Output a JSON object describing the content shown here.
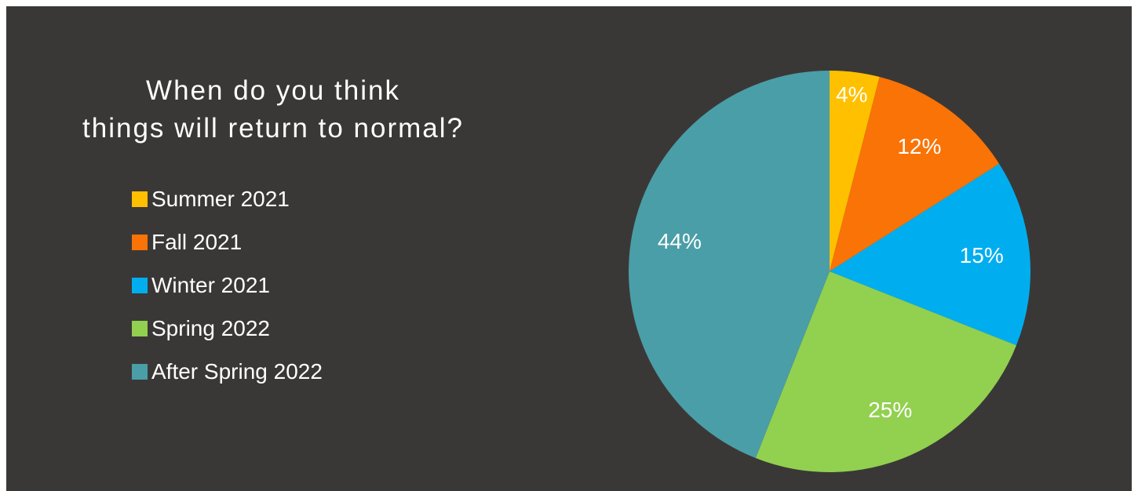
{
  "chart_data": {
    "type": "pie",
    "title_lines": [
      "When do you think",
      "things will return to normal?"
    ],
    "categories": [
      "Summer 2021",
      "Fall 2021",
      "Winter 2021",
      "Spring 2022",
      "After Spring 2022"
    ],
    "values": [
      4,
      12,
      15,
      25,
      44
    ],
    "labels": [
      "4%",
      "12%",
      "15%",
      "25%",
      "44%"
    ],
    "colors": [
      "#FFC000",
      "#F97306",
      "#00AEEF",
      "#92D050",
      "#4A9EA8"
    ],
    "legend_position": "left",
    "start_angle": "top, clockwise"
  },
  "background_color": "#3A3836"
}
